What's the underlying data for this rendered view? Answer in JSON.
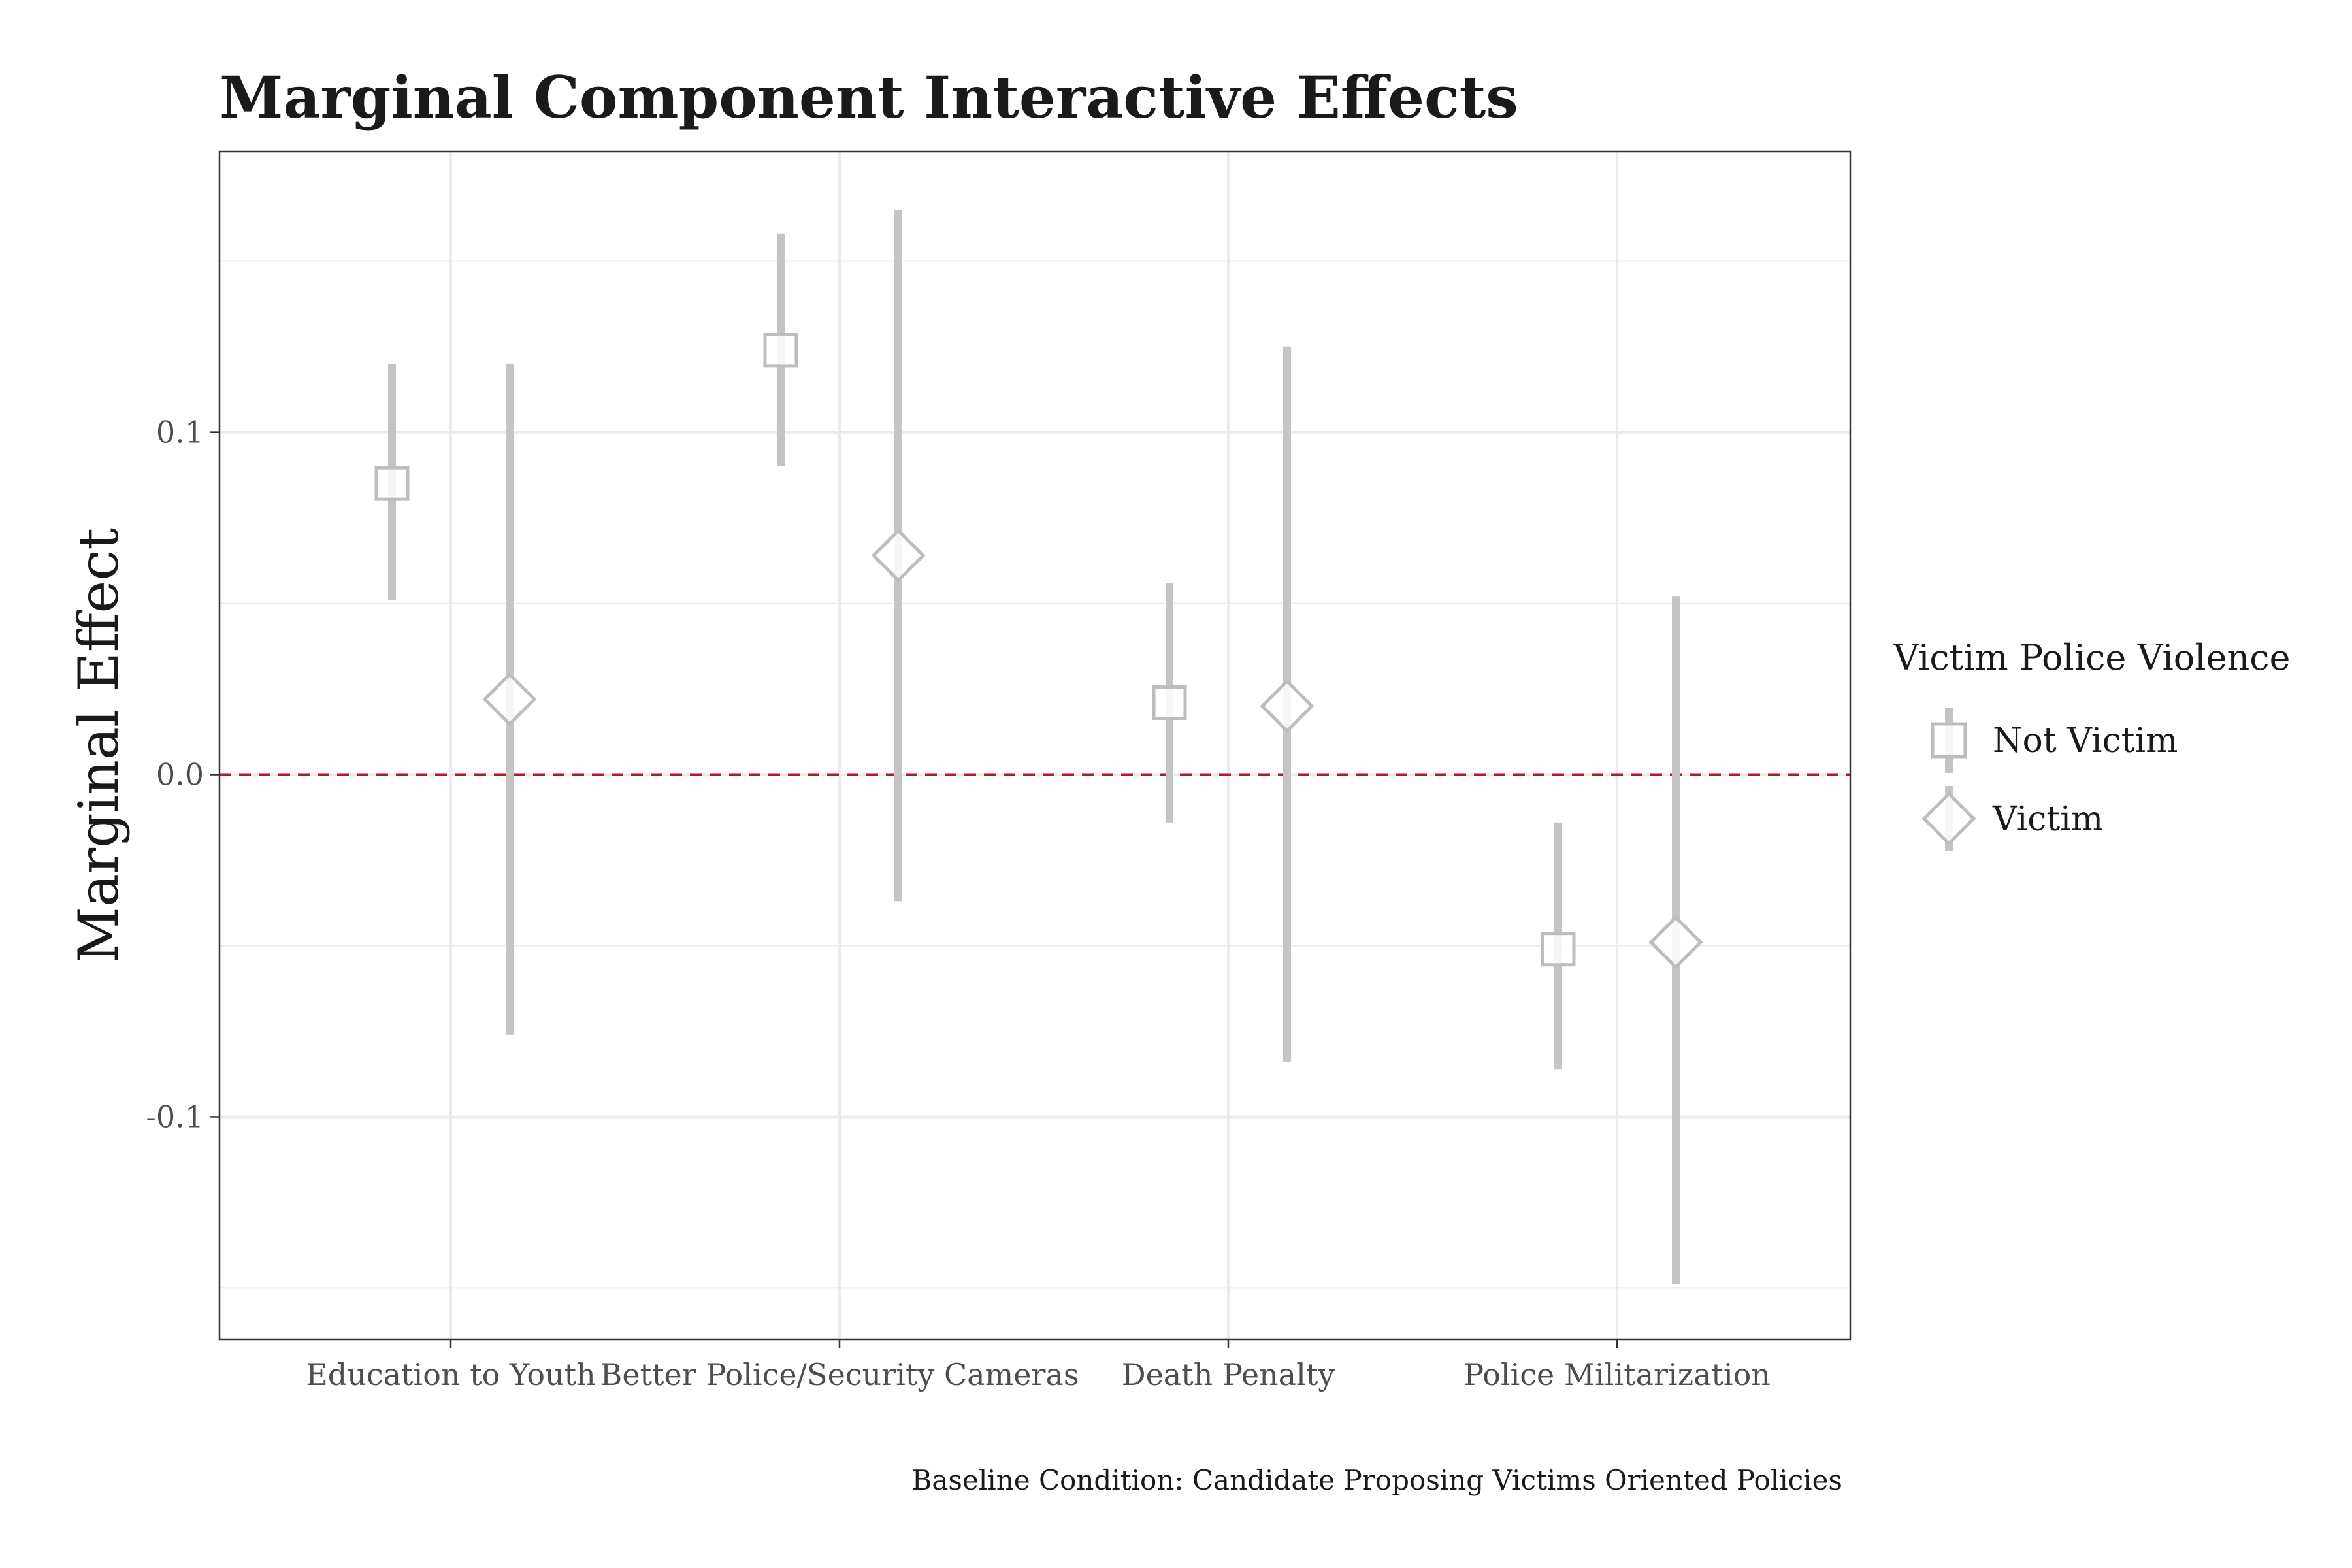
{
  "chart_data": {
    "type": "scatter",
    "title": "Marginal Component Interactive Effects",
    "ylabel": "Marginal Effect",
    "xlabel": "",
    "caption": "Baseline Condition: Candidate Proposing Victims Oriented Policies",
    "categories": [
      "Education to Youth",
      "Better Police/Security Cameras",
      "Death Penalty",
      "Police Militarization"
    ],
    "ylim": [
      -0.165,
      0.182
    ],
    "yticks": [
      -0.1,
      0.0,
      0.1
    ],
    "ytick_labels": [
      "-0.1",
      "0.0",
      "0.1"
    ],
    "reference_line": {
      "y": 0.0,
      "style": "dashed",
      "color": "#b2182b"
    },
    "grid": true,
    "legend": {
      "title": "Victim Police Violence",
      "placement": "right"
    },
    "series": [
      {
        "name": "Not Victim",
        "marker": "square",
        "values": [
          0.085,
          0.124,
          0.021,
          -0.051
        ],
        "lower": [
          0.051,
          0.09,
          -0.014,
          -0.086
        ],
        "upper": [
          0.12,
          0.158,
          0.056,
          -0.014
        ]
      },
      {
        "name": "Victim",
        "marker": "diamond",
        "values": [
          0.022,
          0.064,
          0.02,
          -0.049
        ],
        "lower": [
          -0.076,
          -0.037,
          -0.084,
          -0.149
        ],
        "upper": [
          0.12,
          0.165,
          0.125,
          0.052
        ]
      }
    ],
    "colors": {
      "marker": "#bdbdbd",
      "errorbar": "#c4c4c4",
      "grid": "#ebebeb",
      "panel_border": "#333333"
    }
  }
}
